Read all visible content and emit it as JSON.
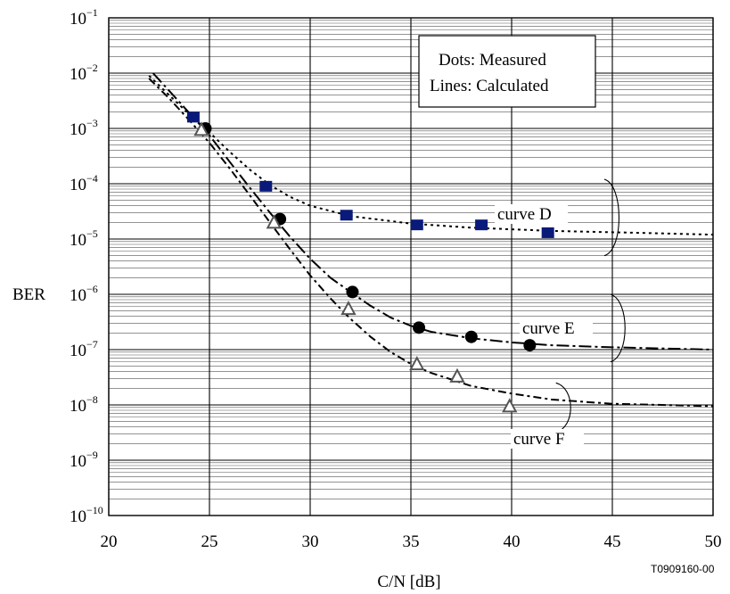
{
  "chart_data": {
    "type": "line",
    "title": "",
    "xlabel": "C/N [dB]",
    "ylabel": "BER",
    "xlim": [
      20,
      50
    ],
    "ylim": [
      1e-10,
      0.1
    ],
    "yscale": "log",
    "x_ticks": [
      "20",
      "25",
      "30",
      "35",
      "40",
      "45",
      "50"
    ],
    "y_ticks": [
      {
        "base": "10",
        "exp": "−1"
      },
      {
        "base": "10",
        "exp": "−2"
      },
      {
        "base": "10",
        "exp": "−3"
      },
      {
        "base": "10",
        "exp": "−4"
      },
      {
        "base": "10",
        "exp": "−5"
      },
      {
        "base": "10",
        "exp": "−6"
      },
      {
        "base": "10",
        "exp": "−7"
      },
      {
        "base": "10",
        "exp": "−8"
      },
      {
        "base": "10",
        "exp": "−9"
      },
      {
        "base": "10",
        "exp": "−10"
      }
    ],
    "grid": true,
    "legend_text": [
      "Dots: Measured",
      "Lines: Calculated"
    ],
    "legend_position": "top-right",
    "figure_code": "T0909160-00",
    "series": [
      {
        "name": "curve D",
        "color": "#0a1a7a",
        "marker": "square",
        "measured": [
          [
            24.2,
            0.0016
          ],
          [
            27.8,
            9e-05
          ],
          [
            31.8,
            2.7e-05
          ],
          [
            35.3,
            1.8e-05
          ],
          [
            38.5,
            1.8e-05
          ],
          [
            41.8,
            1.3e-05
          ]
        ],
        "calculated": [
          [
            22.0,
            0.009
          ],
          [
            23.0,
            0.004
          ],
          [
            24.0,
            0.0018
          ],
          [
            25.0,
            0.00085
          ],
          [
            26.0,
            0.00038
          ],
          [
            27.0,
            0.00018
          ],
          [
            28.0,
            9.5e-05
          ],
          [
            29.0,
            5.8e-05
          ],
          [
            30.0,
            4e-05
          ],
          [
            32.0,
            2.6e-05
          ],
          [
            35.0,
            1.9e-05
          ],
          [
            38.0,
            1.6e-05
          ],
          [
            42.0,
            1.4e-05
          ],
          [
            46.0,
            1.3e-05
          ],
          [
            50.0,
            1.2e-05
          ]
        ]
      },
      {
        "name": "curve E",
        "color": "#000000",
        "marker": "circle",
        "measured": [
          [
            24.8,
            0.001
          ],
          [
            28.5,
            2.3e-05
          ],
          [
            32.1,
            1.1e-06
          ],
          [
            35.4,
            2.5e-07
          ],
          [
            38.0,
            1.7e-07
          ],
          [
            40.9,
            1.2e-07
          ]
        ],
        "calculated": [
          [
            22.2,
            0.01
          ],
          [
            23.0,
            0.0048
          ],
          [
            24.0,
            0.0019
          ],
          [
            25.0,
            0.00075
          ],
          [
            26.0,
            0.00025
          ],
          [
            27.0,
            8.5e-05
          ],
          [
            28.0,
            3e-05
          ],
          [
            29.0,
            1.1e-05
          ],
          [
            30.0,
            4.4e-06
          ],
          [
            31.0,
            2e-06
          ],
          [
            32.0,
            1.1e-06
          ],
          [
            33.0,
            6.2e-07
          ],
          [
            34.0,
            3.8e-07
          ],
          [
            35.0,
            2.7e-07
          ],
          [
            36.0,
            2.1e-07
          ],
          [
            38.0,
            1.6e-07
          ],
          [
            40.0,
            1.35e-07
          ],
          [
            42.0,
            1.2e-07
          ],
          [
            45.0,
            1.1e-07
          ],
          [
            50.0,
            1e-07
          ]
        ]
      },
      {
        "name": "curve F",
        "color": "#555555",
        "marker": "triangle",
        "measured": [
          [
            24.6,
            0.00095
          ],
          [
            28.2,
            2e-05
          ],
          [
            31.9,
            5.5e-07
          ],
          [
            35.3,
            5.5e-08
          ],
          [
            37.3,
            3.3e-08
          ],
          [
            39.9,
            9.5e-09
          ]
        ],
        "calculated": [
          [
            22.0,
            0.008
          ],
          [
            23.0,
            0.0035
          ],
          [
            24.0,
            0.0014
          ],
          [
            25.0,
            0.00055
          ],
          [
            26.0,
            0.00019
          ],
          [
            27.0,
            6.2e-05
          ],
          [
            28.0,
            2e-05
          ],
          [
            29.0,
            6.5e-06
          ],
          [
            30.0,
            2.2e-06
          ],
          [
            31.0,
            8.5e-07
          ],
          [
            32.0,
            3.6e-07
          ],
          [
            33.0,
            1.7e-07
          ],
          [
            34.0,
            9e-08
          ],
          [
            35.0,
            5.5e-08
          ],
          [
            36.0,
            3.8e-08
          ],
          [
            38.0,
            2.2e-08
          ],
          [
            40.0,
            1.6e-08
          ],
          [
            42.0,
            1.25e-08
          ],
          [
            45.0,
            1.05e-08
          ],
          [
            50.0,
            9.5e-09
          ]
        ]
      }
    ]
  }
}
